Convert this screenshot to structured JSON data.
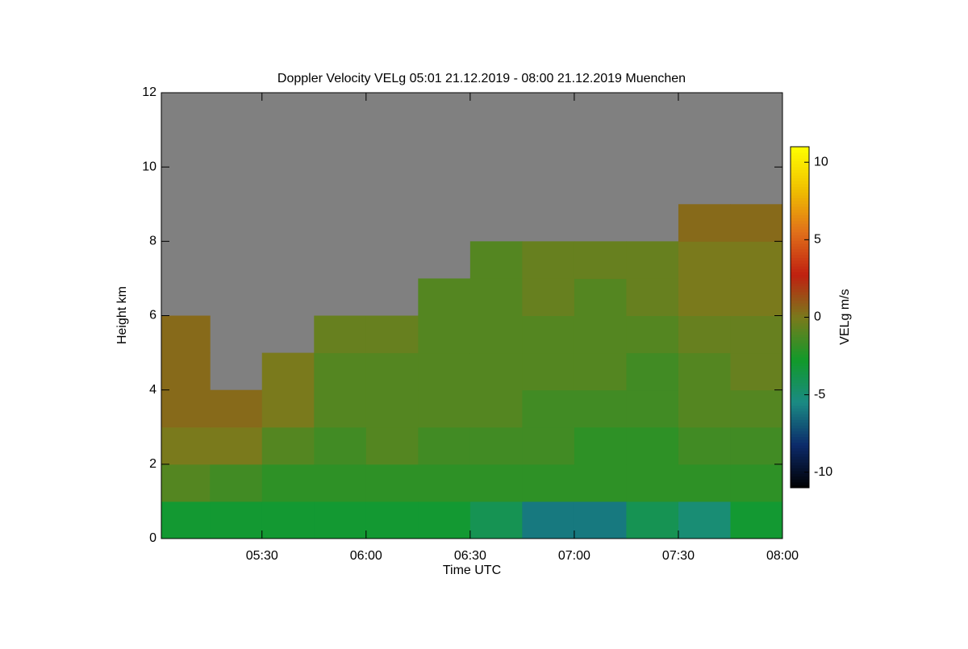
{
  "chart_data": {
    "type": "heatmap",
    "title": "Doppler Velocity VELg   05:01 21.12.2019 - 08:00 21.12.2019 Muenchen",
    "xlabel": "Time UTC",
    "ylabel": "Height km",
    "colorbar_label": "VELg m/s",
    "x_bins": [
      "05:01",
      "05:15",
      "05:30",
      "05:45",
      "06:00",
      "06:15",
      "06:30",
      "06:45",
      "07:00",
      "07:15",
      "07:30",
      "07:45",
      "08:00"
    ],
    "y_bins": [
      0,
      1,
      2,
      3,
      4,
      5,
      6,
      7,
      8,
      9,
      10,
      11,
      12
    ],
    "z": [
      [
        -3,
        -3,
        -3,
        -3,
        -3,
        -3,
        -4,
        -6,
        -6,
        -4,
        -5,
        -3
      ],
      [
        -1,
        -1.5,
        -2,
        -2,
        -2,
        -2,
        -2,
        -2,
        -2,
        -2,
        -2,
        -2
      ],
      [
        0,
        0,
        -1,
        -1.5,
        -1,
        -1.5,
        -1.5,
        -1.5,
        -2,
        -2,
        -1.5,
        -1.5
      ],
      [
        0.5,
        0.5,
        0,
        -1,
        -1,
        -1,
        -1,
        -1.5,
        -1.5,
        -1.5,
        -1,
        -1
      ],
      [
        0.5,
        null,
        0,
        -1,
        -1,
        -1,
        -1,
        -1,
        -1,
        -1.5,
        -1,
        -0.5
      ],
      [
        0.5,
        null,
        null,
        -0.5,
        -0.5,
        -1,
        -1,
        -1,
        -1,
        -1,
        -0.5,
        -0.5
      ],
      [
        null,
        null,
        null,
        null,
        null,
        -1,
        -1,
        -0.5,
        -1,
        -0.5,
        0,
        0
      ],
      [
        null,
        null,
        null,
        null,
        null,
        null,
        -1,
        -0.5,
        -0.5,
        -0.5,
        0,
        0
      ],
      [
        null,
        null,
        null,
        null,
        null,
        null,
        null,
        null,
        null,
        null,
        0.5,
        0.5
      ],
      [
        null,
        null,
        null,
        null,
        null,
        null,
        null,
        null,
        null,
        null,
        null,
        null
      ],
      [
        null,
        null,
        null,
        null,
        null,
        null,
        null,
        null,
        null,
        null,
        null,
        null
      ],
      [
        null,
        null,
        null,
        null,
        null,
        null,
        null,
        null,
        null,
        null,
        null,
        null
      ]
    ],
    "xlim": [
      "05:01",
      "08:00"
    ],
    "xticks": [
      "05:30",
      "06:00",
      "06:30",
      "07:00",
      "07:30",
      "08:00"
    ],
    "ylim": [
      0,
      12
    ],
    "yticks": [
      0,
      2,
      4,
      6,
      8,
      10,
      12
    ],
    "zlim": [
      -11,
      11
    ],
    "colorbar_ticks": [
      -10,
      -5,
      0,
      5,
      10
    ],
    "colormap": [
      "#000000",
      "#0c2a6a",
      "#1a8a84",
      "#129a2a",
      "#7a7a1c",
      "#c02010",
      "#e0701a",
      "#f0c000",
      "#ffff00"
    ],
    "null_color": "#808080"
  }
}
